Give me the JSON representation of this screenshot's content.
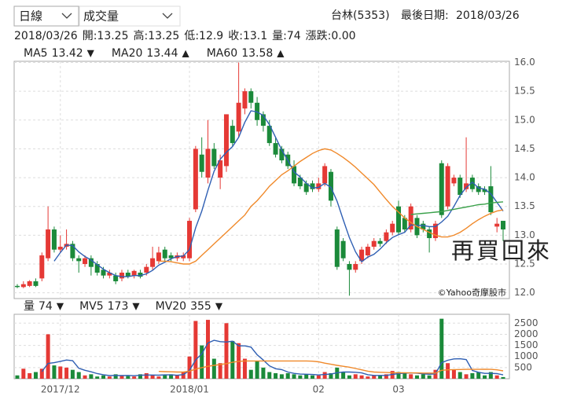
{
  "header": {
    "period": "日線",
    "indicator": "成交量",
    "stock": "台林(5353)",
    "last_date_label": "最後日期:",
    "last_date": "2018/03/26"
  },
  "info": {
    "date": "2018/03/26",
    "fields": [
      {
        "label": "開:",
        "value": "13.25"
      },
      {
        "label": "高:",
        "value": "13.25"
      },
      {
        "label": "低:",
        "value": "12.9"
      },
      {
        "label": "收:",
        "value": "13.1"
      },
      {
        "label": "量:",
        "value": "74"
      },
      {
        "label": "漲跌:",
        "value": "0.00"
      }
    ]
  },
  "chart_data": [
    {
      "type": "candlestick",
      "up_color": "#e53935",
      "down_color": "#1b8a3a",
      "grid": true,
      "annotation": "再買回來",
      "annotation_color": "#c62828",
      "watermark": "©Yahoo奇摩股市",
      "categories": [
        null,
        null,
        null,
        null,
        null,
        null,
        null,
        "2017/12",
        null,
        null,
        null,
        null,
        null,
        null,
        null,
        null,
        null,
        null,
        null,
        null,
        null,
        null,
        null,
        null,
        null,
        null,
        null,
        null,
        "2018/01",
        null,
        null,
        null,
        null,
        null,
        null,
        null,
        null,
        null,
        null,
        null,
        null,
        null,
        null,
        null,
        null,
        null,
        null,
        null,
        null,
        "02",
        null,
        null,
        null,
        null,
        null,
        null,
        null,
        null,
        null,
        null,
        null,
        null,
        "03",
        null,
        null,
        null,
        null,
        null,
        null,
        null,
        null,
        null,
        null,
        null,
        null,
        null,
        null,
        null,
        null,
        null
      ],
      "open": [
        12.12,
        12.1,
        12.12,
        12.2,
        12.25,
        12.6,
        13.1,
        12.75,
        12.8,
        12.85,
        12.6,
        12.5,
        12.6,
        12.5,
        12.4,
        12.3,
        12.3,
        12.25,
        12.35,
        12.3,
        12.35,
        12.35,
        12.45,
        12.55,
        12.75,
        12.65,
        12.6,
        12.6,
        12.6,
        13.45,
        14.4,
        14.0,
        14.5,
        14.0,
        14.2,
        14.9,
        14.8,
        15.2,
        15.5,
        15.3,
        15.1,
        14.9,
        14.6,
        14.5,
        14.4,
        14.2,
        14.0,
        13.9,
        13.9,
        13.8,
        13.9,
        14.1,
        13.1,
        12.9,
        12.5,
        12.4,
        12.55,
        12.65,
        12.8,
        12.9,
        12.9,
        13.05,
        13.5,
        13.3,
        13.1,
        13.3,
        13.2,
        13.1,
        12.95,
        14.25,
        13.5,
        13.9,
        14.0,
        13.8,
        14.0,
        13.85,
        13.8,
        13.85,
        13.15,
        13.25
      ],
      "high": [
        12.15,
        12.2,
        12.22,
        12.25,
        12.7,
        13.5,
        13.15,
        13.0,
        13.1,
        12.9,
        12.65,
        12.65,
        12.65,
        12.55,
        12.45,
        12.4,
        12.35,
        12.4,
        12.4,
        12.4,
        12.4,
        12.5,
        12.8,
        12.8,
        12.8,
        12.7,
        12.7,
        12.7,
        13.3,
        14.55,
        14.7,
        15.0,
        14.6,
        14.4,
        15.1,
        15.0,
        16.0,
        15.55,
        15.55,
        15.4,
        15.15,
        15.0,
        14.7,
        14.55,
        14.45,
        14.3,
        14.05,
        13.95,
        13.95,
        14.0,
        14.25,
        14.15,
        13.15,
        12.95,
        12.55,
        12.55,
        12.8,
        12.85,
        12.95,
        12.95,
        13.1,
        13.25,
        13.6,
        13.35,
        13.55,
        13.35,
        13.25,
        13.15,
        13.25,
        14.3,
        14.25,
        14.05,
        14.05,
        14.7,
        14.05,
        13.9,
        13.85,
        14.2,
        13.3,
        13.25
      ],
      "low": [
        12.08,
        12.08,
        12.1,
        12.1,
        12.2,
        12.55,
        12.7,
        12.7,
        12.75,
        12.55,
        12.35,
        12.45,
        12.3,
        12.3,
        12.25,
        12.25,
        12.15,
        12.2,
        12.25,
        12.25,
        12.25,
        12.3,
        12.4,
        12.5,
        12.55,
        12.55,
        12.55,
        12.55,
        12.55,
        13.4,
        14.0,
        13.9,
        14.15,
        13.8,
        14.1,
        14.55,
        14.7,
        15.1,
        15.2,
        14.9,
        14.8,
        14.55,
        14.35,
        14.25,
        14.15,
        13.85,
        13.8,
        13.7,
        13.75,
        13.75,
        13.85,
        13.5,
        12.4,
        12.55,
        11.95,
        12.35,
        12.5,
        12.6,
        12.75,
        12.8,
        12.85,
        13.0,
        13.0,
        13.05,
        13.05,
        12.95,
        13.05,
        12.7,
        12.9,
        13.3,
        13.45,
        13.85,
        13.65,
        13.75,
        13.75,
        13.7,
        13.7,
        13.35,
        13.05,
        12.9
      ],
      "close": [
        12.1,
        12.15,
        12.2,
        12.12,
        12.65,
        13.1,
        12.75,
        12.8,
        12.85,
        12.6,
        12.55,
        12.6,
        12.45,
        12.35,
        12.3,
        12.35,
        12.2,
        12.35,
        12.28,
        12.38,
        12.28,
        12.45,
        12.6,
        12.7,
        12.6,
        12.6,
        12.65,
        12.65,
        13.25,
        14.5,
        14.1,
        14.5,
        14.2,
        14.3,
        15.1,
        14.6,
        15.3,
        15.5,
        15.3,
        15.0,
        14.9,
        14.6,
        14.4,
        14.3,
        14.2,
        13.9,
        13.85,
        13.75,
        13.8,
        13.9,
        14.2,
        13.6,
        12.45,
        12.6,
        12.4,
        12.5,
        12.75,
        12.8,
        12.9,
        12.85,
        13.05,
        13.2,
        13.05,
        13.1,
        13.5,
        13.0,
        13.1,
        12.95,
        13.2,
        13.35,
        14.2,
        14.0,
        13.7,
        13.9,
        13.8,
        13.75,
        13.75,
        13.4,
        13.2,
        13.1
      ],
      "series": [
        {
          "name": "MA5",
          "color": "#2f5fb3",
          "trend": "▼",
          "trend_color": "#1b8a3a",
          "values": [
            null,
            null,
            null,
            null,
            null,
            null,
            12.55,
            12.7,
            12.83,
            12.82,
            12.71,
            12.63,
            12.57,
            12.49,
            12.41,
            12.35,
            12.3,
            12.28,
            12.28,
            12.3,
            12.3,
            12.33,
            12.39,
            12.48,
            12.53,
            12.59,
            12.63,
            12.64,
            12.75,
            13.13,
            13.42,
            13.78,
            14.11,
            14.32,
            14.44,
            14.54,
            14.7,
            14.96,
            15.16,
            15.14,
            15.08,
            14.92,
            14.7,
            14.48,
            14.3,
            14.1,
            14.01,
            13.9,
            13.82,
            13.83,
            13.9,
            13.83,
            13.59,
            13.27,
            12.96,
            12.71,
            12.54,
            12.62,
            12.67,
            12.76,
            12.87,
            12.96,
            13.01,
            13.05,
            13.18,
            13.17,
            13.17,
            13.15,
            13.15,
            13.23,
            13.33,
            13.5,
            13.69,
            13.83,
            13.92,
            13.82,
            13.8,
            13.72,
            13.57,
            13.42
          ]
        },
        {
          "name": "MA20",
          "color": "#f0892a",
          "trend": "▲",
          "trend_color": "#e53935",
          "values": [
            null,
            null,
            null,
            null,
            null,
            null,
            null,
            null,
            null,
            null,
            null,
            null,
            null,
            null,
            null,
            null,
            null,
            null,
            null,
            null,
            null,
            null,
            null,
            12.55,
            12.55,
            12.54,
            12.52,
            12.5,
            12.5,
            12.55,
            12.65,
            12.75,
            12.85,
            12.95,
            13.05,
            13.15,
            13.25,
            13.35,
            13.5,
            13.6,
            13.72,
            13.85,
            13.95,
            14.05,
            14.12,
            14.2,
            14.28,
            14.35,
            14.42,
            14.47,
            14.5,
            14.48,
            14.42,
            14.35,
            14.27,
            14.18,
            14.08,
            13.98,
            13.88,
            13.75,
            13.62,
            13.5,
            13.4,
            13.3,
            13.22,
            13.15,
            13.1,
            13.05,
            13.0,
            12.97,
            12.97,
            13.0,
            13.05,
            13.12,
            13.2,
            13.27,
            13.33,
            13.38,
            13.42,
            13.44
          ]
        },
        {
          "name": "MA60",
          "color": "#3aa14a",
          "trend": "▲",
          "trend_color": "#e53935",
          "values": [
            null,
            null,
            null,
            null,
            null,
            null,
            null,
            null,
            null,
            null,
            null,
            null,
            null,
            null,
            null,
            null,
            null,
            null,
            null,
            null,
            null,
            null,
            null,
            null,
            null,
            null,
            null,
            null,
            null,
            null,
            null,
            null,
            null,
            null,
            null,
            null,
            null,
            null,
            null,
            null,
            null,
            null,
            null,
            null,
            null,
            null,
            null,
            null,
            null,
            null,
            null,
            null,
            null,
            null,
            null,
            null,
            null,
            null,
            null,
            null,
            null,
            null,
            null,
            null,
            13.36,
            13.37,
            13.38,
            13.39,
            13.4,
            13.41,
            13.43,
            13.45,
            13.47,
            13.49,
            13.51,
            13.53,
            13.54,
            13.56,
            13.57,
            13.58
          ]
        }
      ],
      "ylim": [
        11.9,
        16.02
      ],
      "yticks": [
        {
          "value": 12,
          "label": "12.0"
        },
        12.5,
        {
          "value": 13,
          "label": "13.0"
        },
        13.5,
        {
          "value": 14,
          "label": "14.0"
        },
        14.5,
        {
          "value": 15,
          "label": "15.0"
        },
        15.5,
        {
          "value": 16,
          "label": "16.0"
        }
      ]
    },
    {
      "type": "volume",
      "name": "量",
      "name_color": "#222222",
      "trend": "▼",
      "trend_color": "#1b8a3a",
      "tick_color": "#e53935",
      "grid": true,
      "values": [
        150,
        450,
        250,
        300,
        450,
        2000,
        600,
        550,
        500,
        400,
        300,
        150,
        200,
        100,
        150,
        100,
        200,
        150,
        120,
        100,
        200,
        250,
        150,
        100,
        180,
        200,
        150,
        300,
        1000,
        2600,
        1500,
        2650,
        900,
        700,
        2500,
        1700,
        1600,
        900,
        400,
        800,
        500,
        300,
        250,
        200,
        250,
        200,
        150,
        200,
        150,
        150,
        300,
        250,
        500,
        300,
        150,
        200,
        150,
        100,
        150,
        150,
        200,
        350,
        300,
        250,
        200,
        150,
        200,
        150,
        400,
        2700,
        700,
        400,
        300,
        200,
        250,
        300,
        150,
        300,
        150,
        74
      ],
      "series": [
        {
          "name": "MV5",
          "color": "#2f5fb3",
          "trend": "▼",
          "trend_color": "#1b8a3a",
          "values": [
            null,
            null,
            null,
            null,
            320,
            690,
            720,
            780,
            840,
            810,
            470,
            380,
            310,
            230,
            180,
            140,
            150,
            140,
            150,
            135,
            155,
            165,
            165,
            160,
            175,
            175,
            155,
            185,
            370,
            850,
            1120,
            1610,
            1730,
            1670,
            1650,
            1690,
            1480,
            1480,
            1420,
            1080,
            840,
            580,
            450,
            410,
            300,
            240,
            210,
            200,
            190,
            170,
            190,
            210,
            270,
            300,
            300,
            290,
            260,
            180,
            150,
            150,
            150,
            190,
            230,
            250,
            260,
            250,
            220,
            200,
            220,
            720,
            830,
            890,
            900,
            860,
            370,
            290,
            240,
            240,
            230,
            173
          ]
        },
        {
          "name": "MV20",
          "color": "#f0892a",
          "trend": "▼",
          "trend_color": "#1b8a3a",
          "values": [
            null,
            null,
            null,
            null,
            null,
            null,
            null,
            null,
            null,
            null,
            null,
            null,
            null,
            null,
            null,
            null,
            null,
            null,
            null,
            null,
            null,
            null,
            null,
            330,
            320,
            310,
            300,
            300,
            340,
            430,
            500,
            560,
            600,
            640,
            680,
            740,
            780,
            800,
            800,
            800,
            800,
            800,
            800,
            800,
            800,
            800,
            800,
            800,
            790,
            760,
            700,
            650,
            600,
            560,
            520,
            460,
            400,
            340,
            300,
            290,
            280,
            270,
            270,
            270,
            260,
            260,
            255,
            255,
            250,
            380,
            400,
            410,
            415,
            420,
            420,
            420,
            425,
            420,
            400,
            355
          ]
        }
      ],
      "ylim": [
        0,
        2900
      ],
      "yticks": [
        500,
        1000,
        1500,
        2000,
        2500
      ]
    }
  ]
}
